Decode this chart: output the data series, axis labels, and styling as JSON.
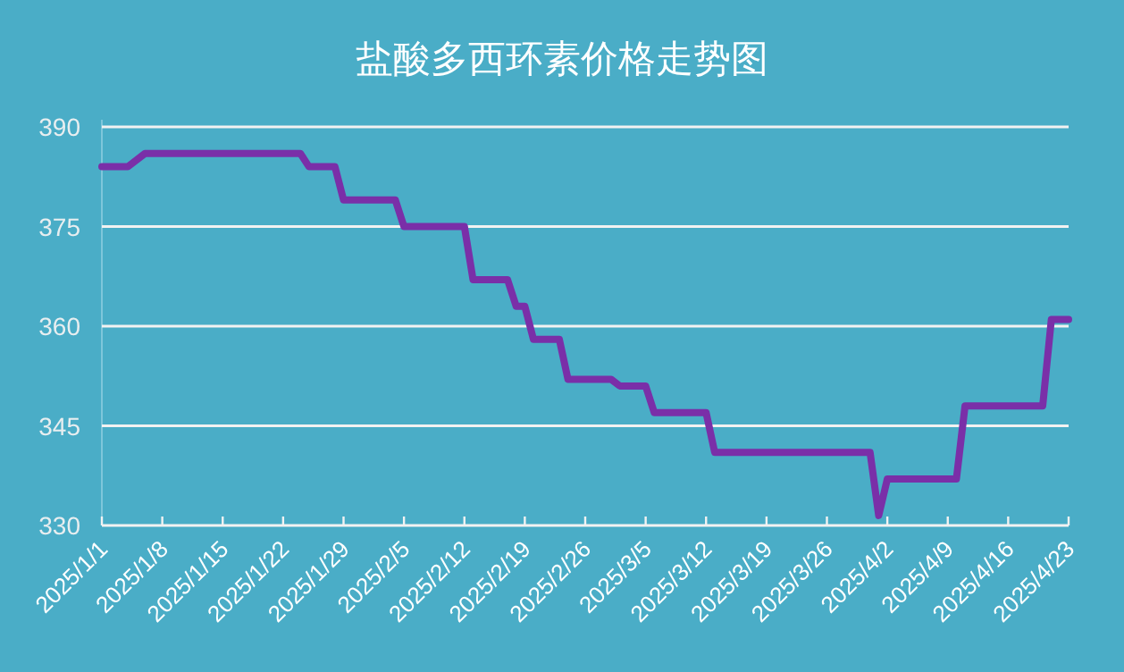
{
  "chart_data": {
    "type": "line",
    "title": "盐酸多西环素价格走势图",
    "series": [
      {
        "color": "#7a2fa8",
        "type": "line",
        "x": [
          "2025-01-01",
          "2025-01-04",
          "2025-01-06",
          "2025-01-24",
          "2025-01-25",
          "2025-01-28",
          "2025-01-29",
          "2025-02-04",
          "2025-02-05",
          "2025-02-12",
          "2025-02-13",
          "2025-02-17",
          "2025-02-18",
          "2025-02-19",
          "2025-02-20",
          "2025-02-23",
          "2025-02-24",
          "2025-03-01",
          "2025-03-02",
          "2025-03-05",
          "2025-03-06",
          "2025-03-12",
          "2025-03-13",
          "2025-03-31",
          "2025-04-01",
          "2025-04-02",
          "2025-04-10",
          "2025-04-11",
          "2025-04-20",
          "2025-04-21",
          "2025-04-23"
        ],
        "values": [
          384,
          384,
          386,
          386,
          384,
          384,
          379,
          379,
          375,
          375,
          367,
          367,
          363,
          363,
          358,
          358,
          352,
          352,
          351,
          351,
          347,
          347,
          341,
          341,
          331.5,
          337,
          337,
          348,
          348,
          361,
          361
        ]
      }
    ],
    "xlim": [
      "2025-01-01",
      "2025-04-23"
    ],
    "xticks": [
      {
        "value": "2025-01-01",
        "label": "2025/1/1"
      },
      {
        "value": "2025-01-08",
        "label": "2025/1/8"
      },
      {
        "value": "2025-01-15",
        "label": "2025/1/15"
      },
      {
        "value": "2025-01-22",
        "label": "2025/1/22"
      },
      {
        "value": "2025-01-29",
        "label": "2025/1/29"
      },
      {
        "value": "2025-02-05",
        "label": "2025/2/5"
      },
      {
        "value": "2025-02-12",
        "label": "2025/2/12"
      },
      {
        "value": "2025-02-19",
        "label": "2025/2/19"
      },
      {
        "value": "2025-02-26",
        "label": "2025/2/26"
      },
      {
        "value": "2025-03-05",
        "label": "2025/3/5"
      },
      {
        "value": "2025-03-12",
        "label": "2025/3/12"
      },
      {
        "value": "2025-03-19",
        "label": "2025/3/19"
      },
      {
        "value": "2025-03-26",
        "label": "2025/3/26"
      },
      {
        "value": "2025-04-02",
        "label": "2025/4/2"
      },
      {
        "value": "2025-04-09",
        "label": "2025/4/9"
      },
      {
        "value": "2025-04-16",
        "label": "2025/4/16"
      },
      {
        "value": "2025-04-23",
        "label": "2025/4/23"
      }
    ],
    "ylim": [
      330,
      390
    ],
    "yticks": [
      330,
      345,
      360,
      375,
      390
    ],
    "grid": "y",
    "marker": "none",
    "line_style": "solid"
  }
}
